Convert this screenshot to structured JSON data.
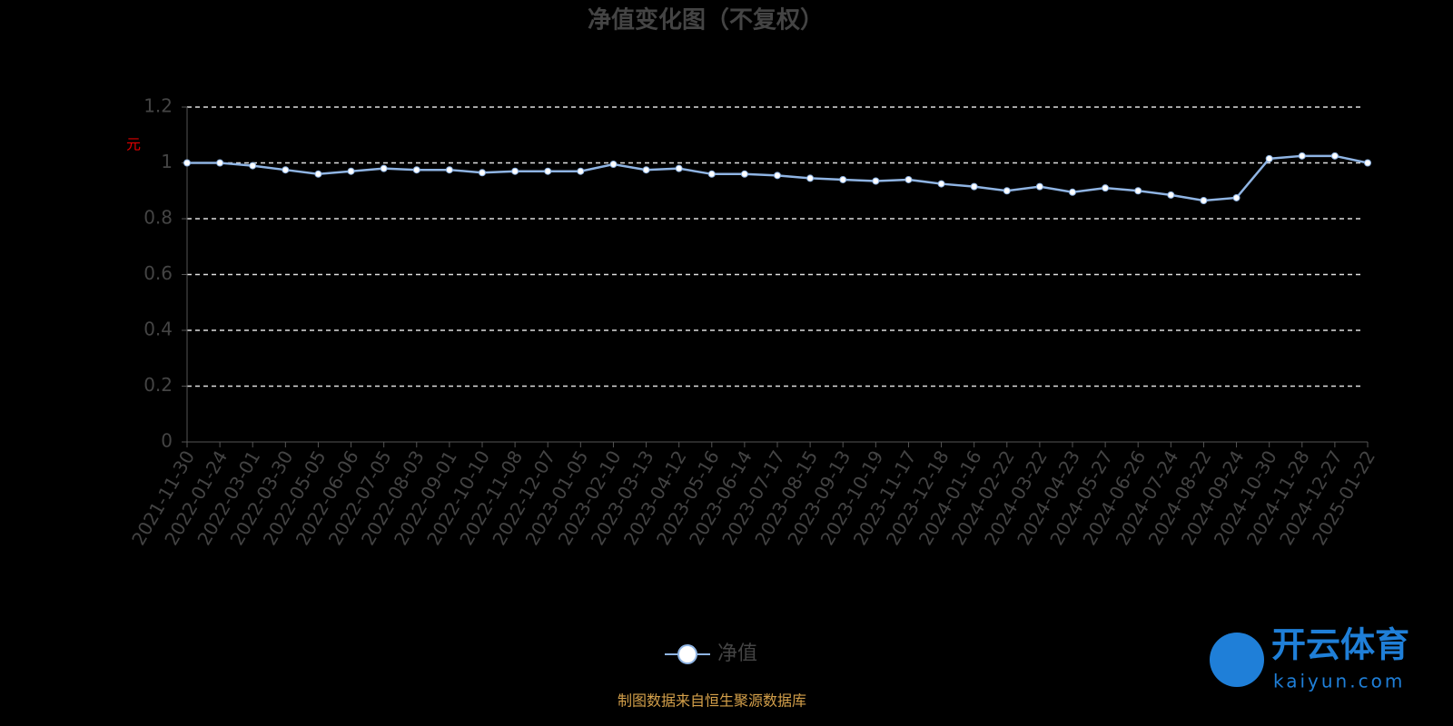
{
  "chart_data": {
    "type": "line",
    "title": "净值变化图（不复权）",
    "y_label": "元",
    "categories": [
      "2021-11-30",
      "2022-01-24",
      "2022-03-01",
      "2022-03-30",
      "2022-05-05",
      "2022-06-06",
      "2022-07-05",
      "2022-08-03",
      "2022-09-01",
      "2022-10-10",
      "2022-11-08",
      "2022-12-07",
      "2023-01-05",
      "2023-02-10",
      "2023-03-13",
      "2023-04-12",
      "2023-05-16",
      "2023-06-14",
      "2023-07-17",
      "2023-08-15",
      "2023-09-13",
      "2023-10-19",
      "2023-11-17",
      "2023-12-18",
      "2024-01-16",
      "2024-02-22",
      "2024-03-22",
      "2024-04-23",
      "2024-05-27",
      "2024-06-26",
      "2024-07-24",
      "2024-08-22",
      "2024-09-24",
      "2024-10-30",
      "2024-11-28",
      "2024-12-27",
      "2025-01-22"
    ],
    "series": [
      {
        "name": "净值",
        "color": "#8fb4e3",
        "values": [
          1.0,
          1.0,
          0.99,
          0.975,
          0.96,
          0.97,
          0.98,
          0.975,
          0.975,
          0.965,
          0.97,
          0.97,
          0.97,
          0.995,
          0.975,
          0.98,
          0.96,
          0.96,
          0.955,
          0.945,
          0.94,
          0.935,
          0.94,
          0.925,
          0.915,
          0.9,
          0.915,
          0.895,
          0.91,
          0.9,
          0.885,
          0.865,
          0.875,
          1.015,
          1.025,
          1.025,
          1.0
        ]
      }
    ],
    "ylim": [
      0,
      1.2
    ],
    "yticks": [
      0,
      0.2,
      0.4,
      0.6,
      0.8,
      1,
      1.2
    ],
    "grid": true,
    "source": "制图数据来自恒生聚源数据库"
  },
  "watermark": {
    "brand": "开云体育",
    "site": "kaiyun.com"
  }
}
